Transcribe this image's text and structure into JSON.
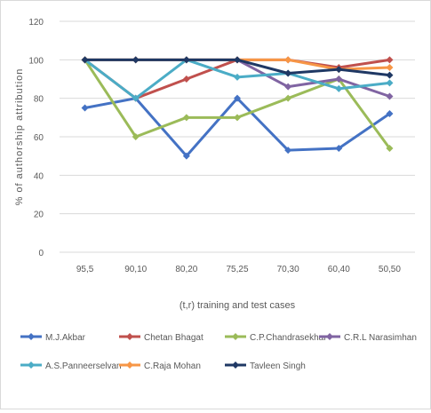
{
  "chart_data": {
    "type": "line",
    "title": "",
    "xlabel": "(t,r) training and test cases",
    "ylabel": "% of authorship attribution",
    "categories": [
      "95,5",
      "90,10",
      "80,20",
      "75,25",
      "70,30",
      "60,40",
      "50,50"
    ],
    "ylim": [
      0,
      120
    ],
    "yticks": [
      0,
      20,
      40,
      60,
      80,
      100,
      120
    ],
    "grid": "horizontal",
    "legend_position": "bottom",
    "series": [
      {
        "name": "M.J.Akbar",
        "color": "#4472c4",
        "values": [
          75,
          80,
          50,
          80,
          53,
          54,
          72
        ]
      },
      {
        "name": "Chetan Bhagat",
        "color": "#c0504d",
        "values": [
          100,
          80,
          90,
          100,
          100,
          96,
          100
        ]
      },
      {
        "name": "C.P.Chandrasekhar",
        "color": "#9bbb59",
        "values": [
          100,
          60,
          70,
          70,
          80,
          90,
          54
        ]
      },
      {
        "name": "C.R.L Narasimhan",
        "color": "#8064a2",
        "values": [
          100,
          100,
          100,
          100,
          86,
          90,
          81
        ]
      },
      {
        "name": "A.S.Panneerselvan",
        "color": "#4bacc6",
        "values": [
          100,
          80,
          100,
          91,
          93,
          85,
          88
        ]
      },
      {
        "name": "C.Raja Mohan",
        "color": "#f79646",
        "values": [
          100,
          100,
          100,
          100,
          100,
          95,
          96
        ]
      },
      {
        "name": "Tavleen Singh",
        "color": "#1f3864",
        "values": [
          100,
          100,
          100,
          100,
          93,
          95,
          92
        ]
      }
    ]
  }
}
